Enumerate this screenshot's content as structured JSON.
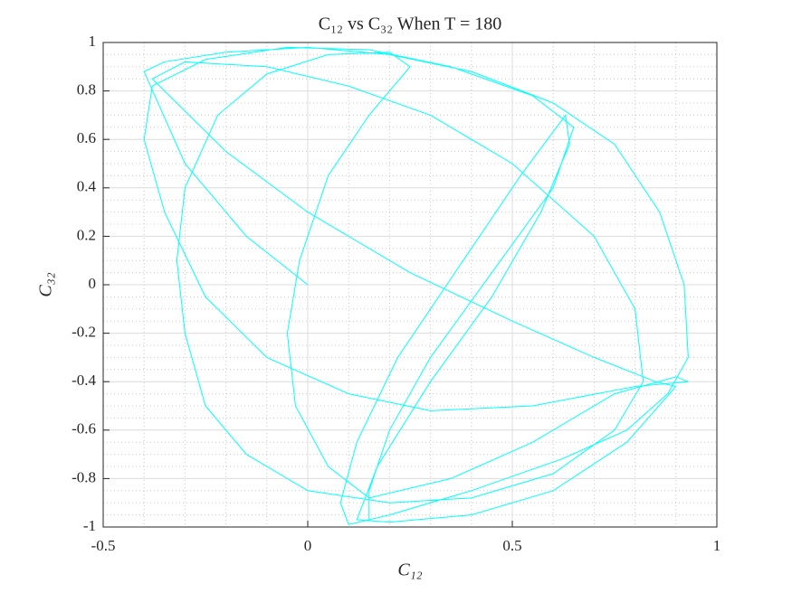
{
  "chart_data": {
    "type": "line",
    "title": "C₁₂ vs C₃₂ When T = 180",
    "x_label": "C₁₂",
    "y_label": "C₃₂",
    "xlim": [
      -0.5,
      1
    ],
    "ylim": [
      -1,
      1
    ],
    "xticks": [
      -0.5,
      0,
      0.5,
      1
    ],
    "yticks": [
      -1,
      -0.8,
      -0.6,
      -0.4,
      -0.2,
      0,
      0.2,
      0.4,
      0.6,
      0.8,
      1
    ],
    "xminorticks": [
      -0.4,
      -0.3,
      -0.2,
      -0.1,
      0.1,
      0.2,
      0.3,
      0.4,
      0.6,
      0.7,
      0.8,
      0.9
    ],
    "yminorticks": [
      -0.95,
      -0.9,
      -0.85,
      -0.75,
      -0.7,
      -0.65,
      -0.55,
      -0.5,
      -0.45,
      -0.35,
      -0.3,
      -0.25,
      -0.15,
      -0.1,
      -0.05,
      0.05,
      0.1,
      0.15,
      0.25,
      0.3,
      0.35,
      0.45,
      0.5,
      0.55,
      0.65,
      0.7,
      0.75,
      0.85,
      0.9,
      0.95
    ],
    "grid": true,
    "minor_grid": true,
    "series": [
      {
        "color": "#00ffff",
        "x": [
          0,
          -0.15,
          -0.3,
          -0.4,
          -0.35,
          -0.2,
          0,
          0.2,
          0.4,
          0.6,
          0.75,
          0.86,
          0.92,
          0.93,
          0.88,
          0.78,
          0.62,
          0.4,
          0.2,
          0.1,
          0.08,
          0.12,
          0.22,
          0.38,
          0.52,
          0.63,
          0.64,
          0.57,
          0.45,
          0.3,
          0.17,
          0.12,
          0.2,
          0.4,
          0.6,
          0.78,
          0.9,
          0.85,
          0.7,
          0.5,
          0.25,
          0.0,
          -0.2,
          -0.38,
          -0.3,
          -0.1,
          0.1,
          0.3,
          0.5,
          0.7,
          0.8,
          0.82,
          0.75,
          0.6,
          0.4,
          0.2,
          0.0,
          -0.15,
          -0.25,
          -0.3,
          -0.32,
          -0.3,
          -0.22,
          -0.1,
          0.05,
          0.2,
          0.25,
          0.15,
          0.05,
          -0.02,
          -0.05,
          -0.03,
          0.05,
          0.15,
          0.35,
          0.55,
          0.75,
          0.9,
          0.93,
          0.8,
          0.55,
          0.3,
          0.1,
          -0.1,
          -0.25,
          -0.35,
          -0.4,
          -0.38,
          -0.25,
          -0.05,
          0.15,
          0.35,
          0.55,
          0.65,
          0.6,
          0.45,
          0.3,
          0.2,
          0.15,
          0.15
        ],
        "y": [
          0,
          0.2,
          0.5,
          0.88,
          0.92,
          0.96,
          0.98,
          0.95,
          0.88,
          0.75,
          0.58,
          0.3,
          0.0,
          -0.3,
          -0.45,
          -0.6,
          -0.72,
          -0.85,
          -0.95,
          -0.99,
          -0.9,
          -0.65,
          -0.3,
          0.1,
          0.45,
          0.7,
          0.58,
          0.3,
          -0.05,
          -0.4,
          -0.75,
          -0.97,
          -0.98,
          -0.95,
          -0.85,
          -0.65,
          -0.42,
          -0.4,
          -0.3,
          -0.15,
          0.05,
          0.3,
          0.55,
          0.85,
          0.92,
          0.9,
          0.82,
          0.7,
          0.5,
          0.2,
          -0.1,
          -0.4,
          -0.6,
          -0.78,
          -0.88,
          -0.9,
          -0.85,
          -0.7,
          -0.5,
          -0.2,
          0.1,
          0.4,
          0.7,
          0.87,
          0.95,
          0.96,
          0.9,
          0.7,
          0.45,
          0.1,
          -0.2,
          -0.5,
          -0.75,
          -0.88,
          -0.8,
          -0.65,
          -0.45,
          -0.38,
          -0.4,
          -0.42,
          -0.5,
          -0.52,
          -0.45,
          -0.3,
          -0.05,
          0.3,
          0.6,
          0.82,
          0.93,
          0.98,
          0.97,
          0.9,
          0.78,
          0.65,
          0.4,
          0.05,
          -0.3,
          -0.6,
          -0.85,
          -0.97
        ]
      }
    ]
  }
}
